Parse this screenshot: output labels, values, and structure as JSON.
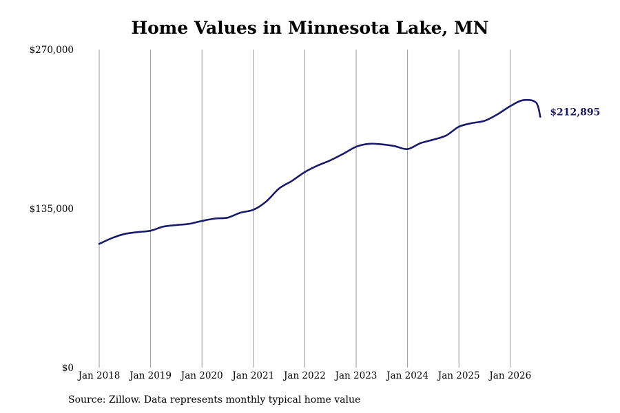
{
  "title": "Home Values in Minnesota Lake, MN",
  "source": "Source: Zillow. Data represents monthly typical home value",
  "colors": {
    "line": "#1a1a6b",
    "grid": "#9a9a9a",
    "end_label": "#1a1a6b"
  },
  "chart_data": {
    "type": "line",
    "title": "Home Values in Minnesota Lake, MN",
    "xlabel": "",
    "ylabel": "",
    "ylim": [
      0,
      270000
    ],
    "yticks": [
      0,
      135000,
      270000
    ],
    "ytick_labels": [
      "$0",
      "$135,000",
      "$270,000"
    ],
    "xticks": [
      "2018-01",
      "2019-01",
      "2020-01",
      "2021-01",
      "2022-01",
      "2023-01",
      "2024-01",
      "2025-01",
      "2026-01"
    ],
    "xtick_labels": [
      "Jan 2018",
      "Jan 2019",
      "Jan 2020",
      "Jan 2021",
      "Jan 2022",
      "Jan 2023",
      "Jan 2024",
      "Jan 2025",
      "Jan 2026"
    ],
    "grid": "vertical",
    "end_label": "$212,895",
    "series": [
      {
        "points": [
          [
            "2018-01",
            105000
          ],
          [
            "2018-04",
            110000
          ],
          [
            "2018-07",
            113500
          ],
          [
            "2018-10",
            115000
          ],
          [
            "2019-01",
            116200
          ],
          [
            "2019-04",
            119700
          ],
          [
            "2019-07",
            121000
          ],
          [
            "2019-10",
            122000
          ],
          [
            "2020-01",
            124500
          ],
          [
            "2020-04",
            126500
          ],
          [
            "2020-07",
            127300
          ],
          [
            "2020-10",
            131500
          ],
          [
            "2021-01",
            134000
          ],
          [
            "2021-04",
            141000
          ],
          [
            "2021-07",
            152000
          ],
          [
            "2021-10",
            158500
          ],
          [
            "2022-01",
            166000
          ],
          [
            "2022-04",
            171500
          ],
          [
            "2022-07",
            176000
          ],
          [
            "2022-10",
            181500
          ],
          [
            "2023-01",
            187500
          ],
          [
            "2023-04",
            190000
          ],
          [
            "2023-07",
            189500
          ],
          [
            "2023-10",
            188000
          ],
          [
            "2024-01",
            185500
          ],
          [
            "2024-04",
            190500
          ],
          [
            "2024-07",
            193500
          ],
          [
            "2024-10",
            197000
          ],
          [
            "2025-01",
            204500
          ],
          [
            "2025-04",
            207500
          ],
          [
            "2025-07",
            209500
          ],
          [
            "2025-10",
            215000
          ],
          [
            "2026-01",
            222000
          ],
          [
            "2026-04",
            227000
          ],
          [
            "2026-07",
            225000
          ],
          [
            "2026-08",
            212895
          ]
        ]
      }
    ]
  }
}
